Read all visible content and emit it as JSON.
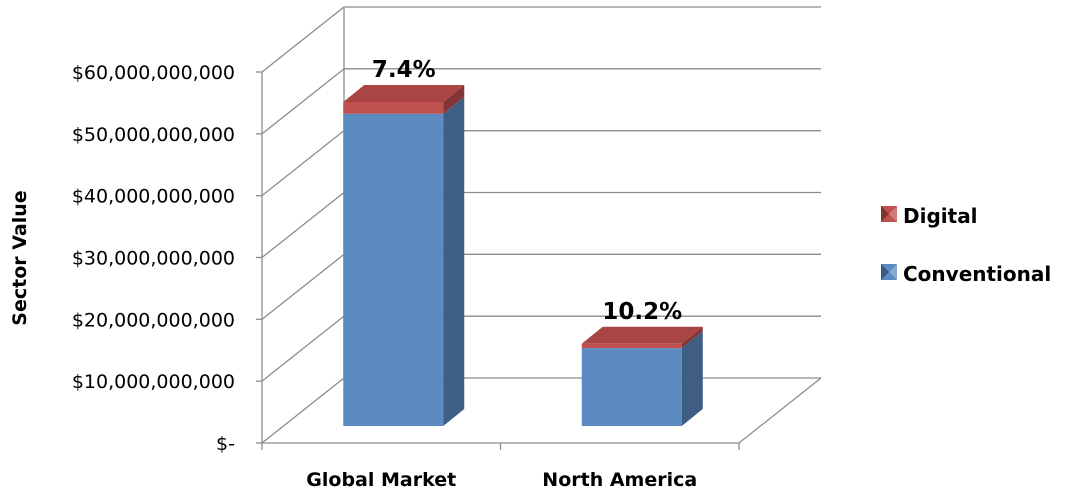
{
  "chart_data": {
    "type": "bar",
    "stacked": true,
    "three_d": true,
    "ylabel": "Sector Value",
    "categories": [
      "Global Market",
      "North America"
    ],
    "series": [
      {
        "name": "Conventional",
        "values": [
          50500000000,
          12600000000
        ],
        "color": "#5b8bc0"
      },
      {
        "name": "Digital",
        "values": [
          1900000000,
          700000000
        ],
        "color": "#c0504d"
      }
    ],
    "data_labels": [
      "7.4%",
      "10.2%"
    ],
    "ylim": [
      0,
      60000000000
    ],
    "yticks": [
      {
        "value": 0,
        "label": "$-"
      },
      {
        "value": 10000000000,
        "label": "$10,000,000,000"
      },
      {
        "value": 20000000000,
        "label": "$20,000,000,000"
      },
      {
        "value": 30000000000,
        "label": "$30,000,000,000"
      },
      {
        "value": 40000000000,
        "label": "$40,000,000,000"
      },
      {
        "value": 50000000000,
        "label": "$50,000,000,000"
      },
      {
        "value": 60000000000,
        "label": "$60,000,000,000"
      }
    ],
    "grid": true,
    "legend": {
      "placement": "right",
      "order": [
        "Digital",
        "Conventional"
      ]
    }
  }
}
